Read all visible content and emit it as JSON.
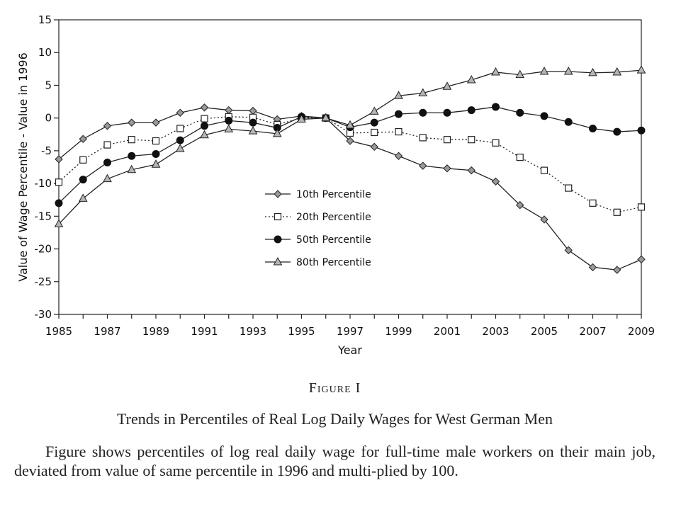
{
  "chart_data": {
    "type": "line",
    "xlabel": "Year",
    "ylabel": "Value of Wage Percentile - Value in 1996",
    "xlim": [
      1985,
      2009
    ],
    "ylim": [
      -30,
      15
    ],
    "x_ticks": [
      "1985",
      "1987",
      "1989",
      "1991",
      "1993",
      "1995",
      "1997",
      "1999",
      "2001",
      "2003",
      "2005",
      "2007",
      "2009"
    ],
    "y_ticks": [
      "15",
      "10",
      "5",
      "0",
      "-5",
      "-10",
      "-15",
      "-20",
      "-25",
      "-30"
    ],
    "legend_position": "center-left",
    "x": [
      1985,
      1986,
      1987,
      1988,
      1989,
      1990,
      1991,
      1992,
      1993,
      1994,
      1995,
      1996,
      1997,
      1998,
      1999,
      2000,
      2001,
      2002,
      2003,
      2004,
      2005,
      2006,
      2007,
      2008,
      2009
    ],
    "series": [
      {
        "name": "10th Percentile",
        "marker": "diamond",
        "line": "solid",
        "values": [
          -6.3,
          -3.2,
          -1.2,
          -0.7,
          -0.7,
          0.8,
          1.6,
          1.2,
          1.1,
          -0.2,
          0.3,
          0.0,
          -3.5,
          -4.4,
          -5.8,
          -7.3,
          -7.7,
          -8.0,
          -9.7,
          -13.3,
          -15.5,
          -20.2,
          -22.8,
          -23.2,
          -21.6
        ]
      },
      {
        "name": "20th Percentile",
        "marker": "square",
        "line": "dotted",
        "values": [
          -9.8,
          -6.4,
          -4.1,
          -3.3,
          -3.5,
          -1.6,
          -0.1,
          0.2,
          0.1,
          -1.0,
          0.0,
          0.0,
          -2.3,
          -2.2,
          -2.1,
          -3.0,
          -3.3,
          -3.3,
          -3.8,
          -6.0,
          -8.0,
          -10.7,
          -13.0,
          -14.4,
          -13.6
        ]
      },
      {
        "name": "50th Percentile",
        "marker": "circle",
        "line": "solid",
        "values": [
          -13.0,
          -9.4,
          -6.8,
          -5.8,
          -5.5,
          -3.4,
          -1.2,
          -0.4,
          -0.7,
          -1.5,
          0.2,
          0.0,
          -1.4,
          -0.7,
          0.6,
          0.8,
          0.8,
          1.2,
          1.7,
          0.8,
          0.3,
          -0.6,
          -1.6,
          -2.1,
          -1.9
        ]
      },
      {
        "name": "80th Percentile",
        "marker": "triangle",
        "line": "solid",
        "values": [
          -16.2,
          -12.3,
          -9.3,
          -7.9,
          -7.1,
          -4.7,
          -2.6,
          -1.7,
          -2.0,
          -2.4,
          -0.2,
          0.0,
          -1.1,
          1.0,
          3.4,
          3.8,
          4.8,
          5.8,
          7.0,
          6.6,
          7.1,
          7.1,
          6.9,
          7.0,
          7.3
        ]
      }
    ]
  },
  "caption": {
    "label": "Figure I",
    "title": "Trends in Percentiles of Real Log Daily Wages for West German Men",
    "note": "Figure shows percentiles of log real daily wage for full-time male workers on their main job, deviated from value of same percentile in 1996 and multi-plied by 100."
  }
}
